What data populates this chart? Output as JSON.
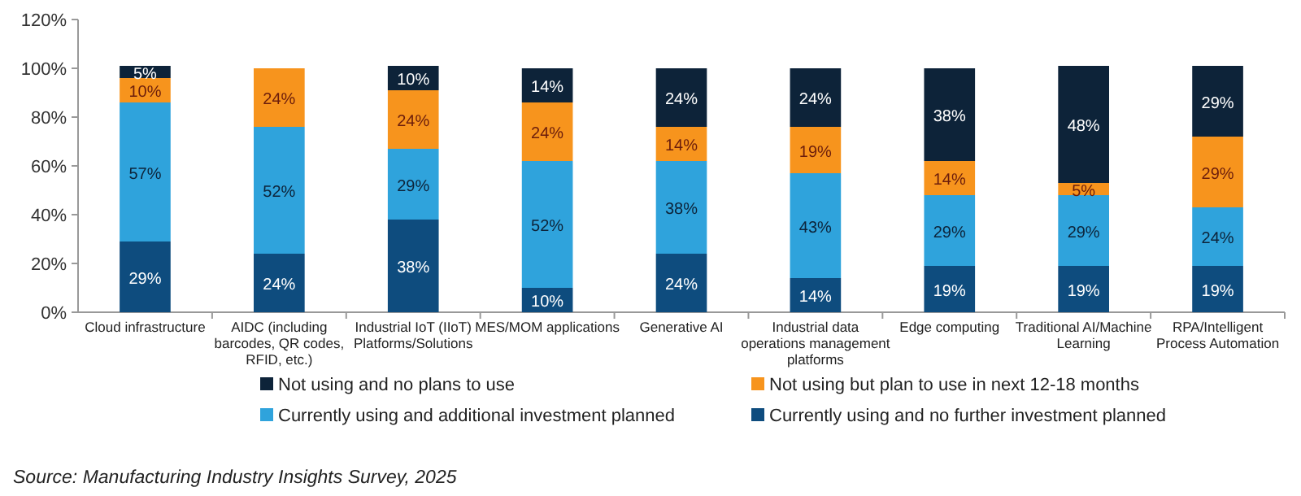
{
  "chart_data": {
    "type": "bar",
    "stacked": true,
    "categories": [
      "Cloud infrastructure",
      "AIDC (including barcodes, QR codes, RFID, etc.)",
      "Industrial IoT (IIoT) Platforms/Solutions",
      "MES/MOM applications",
      "Generative AI",
      "Industrial data operations management platforms",
      "Edge computing",
      "Traditional AI/Machine Learning",
      "RPA/Intelligent Process Automation"
    ],
    "series": [
      {
        "name": "Currently using and no further investment planned",
        "color": "#0e4c7e",
        "values": [
          29,
          24,
          38,
          10,
          24,
          14,
          19,
          19,
          19
        ],
        "value_labels": [
          "29%",
          "24%",
          "38%",
          "10%",
          "24%",
          "14%",
          "19%",
          "19%",
          "19%"
        ]
      },
      {
        "name": "Currently using and additional investment planned",
        "color": "#2fa3dc",
        "values": [
          57,
          52,
          29,
          52,
          38,
          43,
          29,
          29,
          24
        ],
        "value_labels": [
          "57%",
          "52%",
          "29%",
          "52%",
          "38%",
          "43%",
          "29%",
          "29%",
          "24%"
        ]
      },
      {
        "name": "Not using but plan to use in next 12-18 months",
        "color": "#f7941d",
        "values": [
          10,
          24,
          24,
          24,
          14,
          19,
          14,
          5,
          29
        ],
        "value_labels": [
          "10%",
          "24%",
          "24%",
          "24%",
          "14%",
          "19%",
          "14%",
          "5%",
          "29%"
        ]
      },
      {
        "name": "Not using and no plans to use",
        "color": "#0d2339",
        "values": [
          5,
          null,
          10,
          14,
          24,
          24,
          38,
          48,
          29
        ],
        "value_labels": [
          "5%",
          null,
          "10%",
          "14%",
          "24%",
          "24%",
          "38%",
          "48%",
          "29%"
        ]
      }
    ],
    "ylim": [
      0,
      120
    ],
    "yticks": [
      {
        "value": 0,
        "label": "0%"
      },
      {
        "value": 20,
        "label": "20%"
      },
      {
        "value": 40,
        "label": "40%"
      },
      {
        "value": 60,
        "label": "60%"
      },
      {
        "value": 80,
        "label": "80%"
      },
      {
        "value": 100,
        "label": "100%"
      },
      {
        "value": 120,
        "label": "120%"
      }
    ],
    "grid": false,
    "legend": "bottom",
    "annotations": [
      "Source: Manufacturing Industry Insights Survey, 2025"
    ]
  }
}
